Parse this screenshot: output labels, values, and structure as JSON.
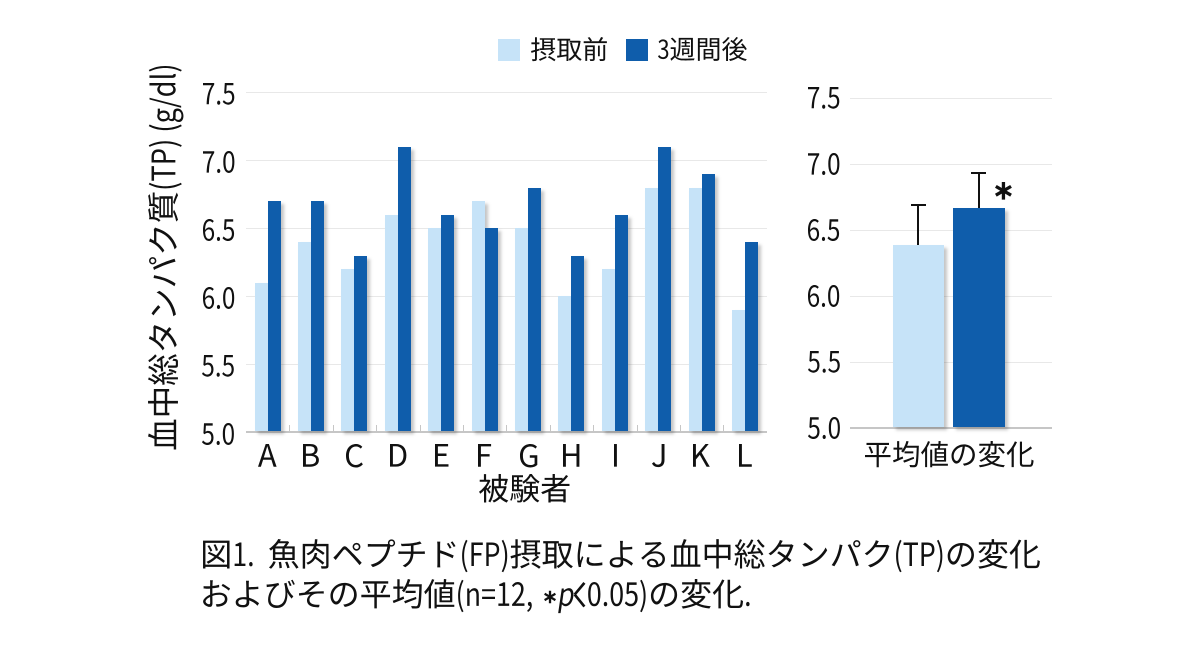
{
  "figure": {
    "background": "#ffffff",
    "text_color": "#111111",
    "colors": {
      "series_before": "#c6e3f8",
      "series_after": "#0f5dab",
      "gridline": "#e8e8e8",
      "axis_line": "#c6c6c6",
      "error_bar": "#111111"
    }
  },
  "legend": {
    "items": [
      {
        "label": "摂取前",
        "color": "#c6e3f8"
      },
      {
        "label": "3週間後",
        "color": "#0f5dab"
      }
    ],
    "position": "top"
  },
  "chart_data": [
    {
      "type": "bar",
      "panel": "individual-subjects",
      "categories": [
        "A",
        "B",
        "C",
        "D",
        "E",
        "F",
        "G",
        "H",
        "I",
        "J",
        "K",
        "L"
      ],
      "series": [
        {
          "name": "摂取前",
          "values": [
            6.1,
            6.4,
            6.2,
            6.6,
            6.5,
            6.7,
            6.5,
            6.0,
            6.2,
            6.8,
            6.8,
            5.9
          ]
        },
        {
          "name": "3週間後",
          "values": [
            6.7,
            6.7,
            6.3,
            7.1,
            6.6,
            6.5,
            6.8,
            6.3,
            6.6,
            7.1,
            6.9,
            6.4
          ]
        }
      ],
      "xlabel": "被験者",
      "ylabel": "血中総タンパク質(TP) (g/dl)",
      "ylim": [
        5.0,
        7.5
      ],
      "yticks": [
        7.5,
        7.0,
        6.5,
        6.0,
        5.5,
        5.0
      ],
      "ytick_labels": [
        "7.5",
        "7.0",
        "6.5",
        "6.0",
        "5.5",
        "5.0"
      ],
      "grid": true
    },
    {
      "type": "bar",
      "panel": "mean-comparison",
      "categories": [
        "平均値の変化"
      ],
      "xlabel": "平均値の変化",
      "series": [
        {
          "name": "摂取前",
          "mean": 6.39,
          "error_upper": 0.31
        },
        {
          "name": "3週間後",
          "mean": 6.67,
          "error_upper": 0.27
        }
      ],
      "ylim": [
        5.0,
        7.5
      ],
      "yticks": [
        7.5,
        7.0,
        6.5,
        6.0,
        5.5,
        5.0
      ],
      "ytick_labels": [
        "7.5",
        "7.0",
        "6.5",
        "6.0",
        "5.5",
        "5.0"
      ],
      "significance": "*",
      "grid": true
    }
  ],
  "caption": {
    "line1": "図1. 魚肉ペプチド(FP)摂取による血中総タンパク(TP)の変化",
    "line2": "およびその平均値(n=12, *p<0.05)の変化."
  }
}
